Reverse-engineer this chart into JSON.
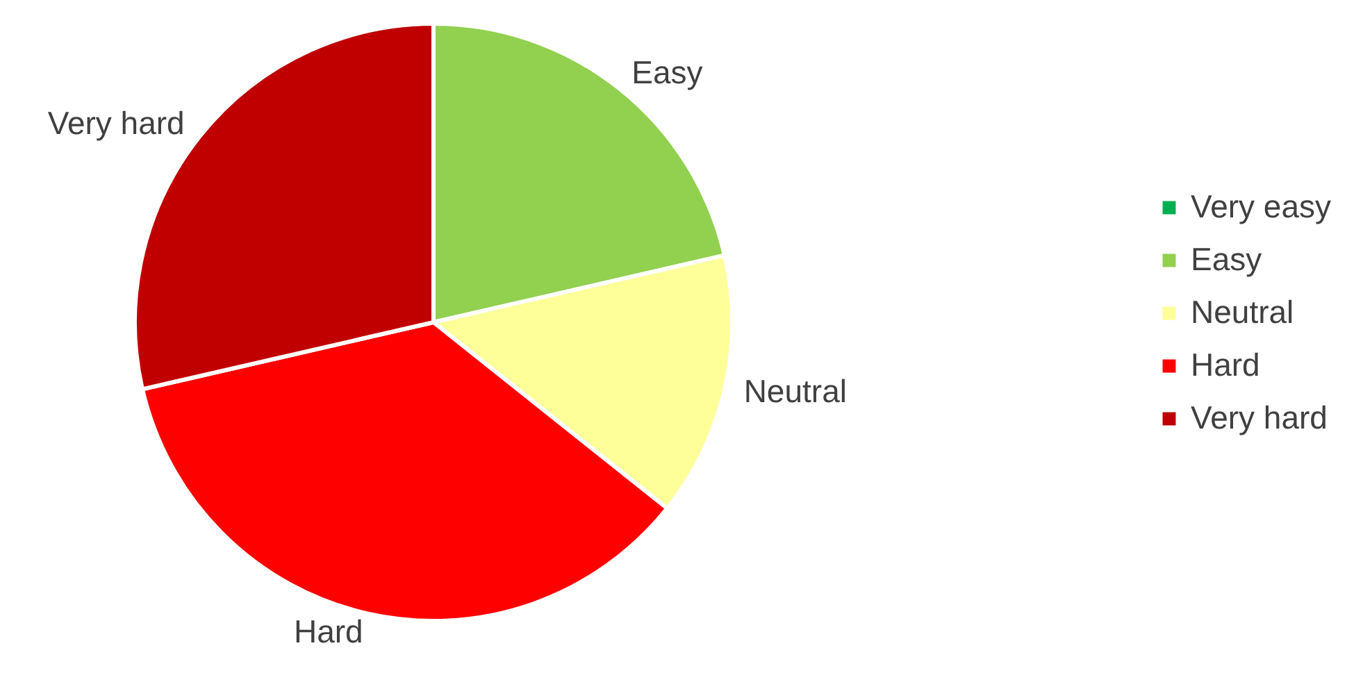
{
  "chart_data": {
    "type": "pie",
    "categories": [
      "Very easy",
      "Easy",
      "Neutral",
      "Hard",
      "Very hard"
    ],
    "values": [
      0,
      21.4,
      14.3,
      35.7,
      28.6
    ],
    "colors": [
      "#00b050",
      "#92d050",
      "#ffff99",
      "#ff0000",
      "#c00000"
    ],
    "legend": "right"
  }
}
